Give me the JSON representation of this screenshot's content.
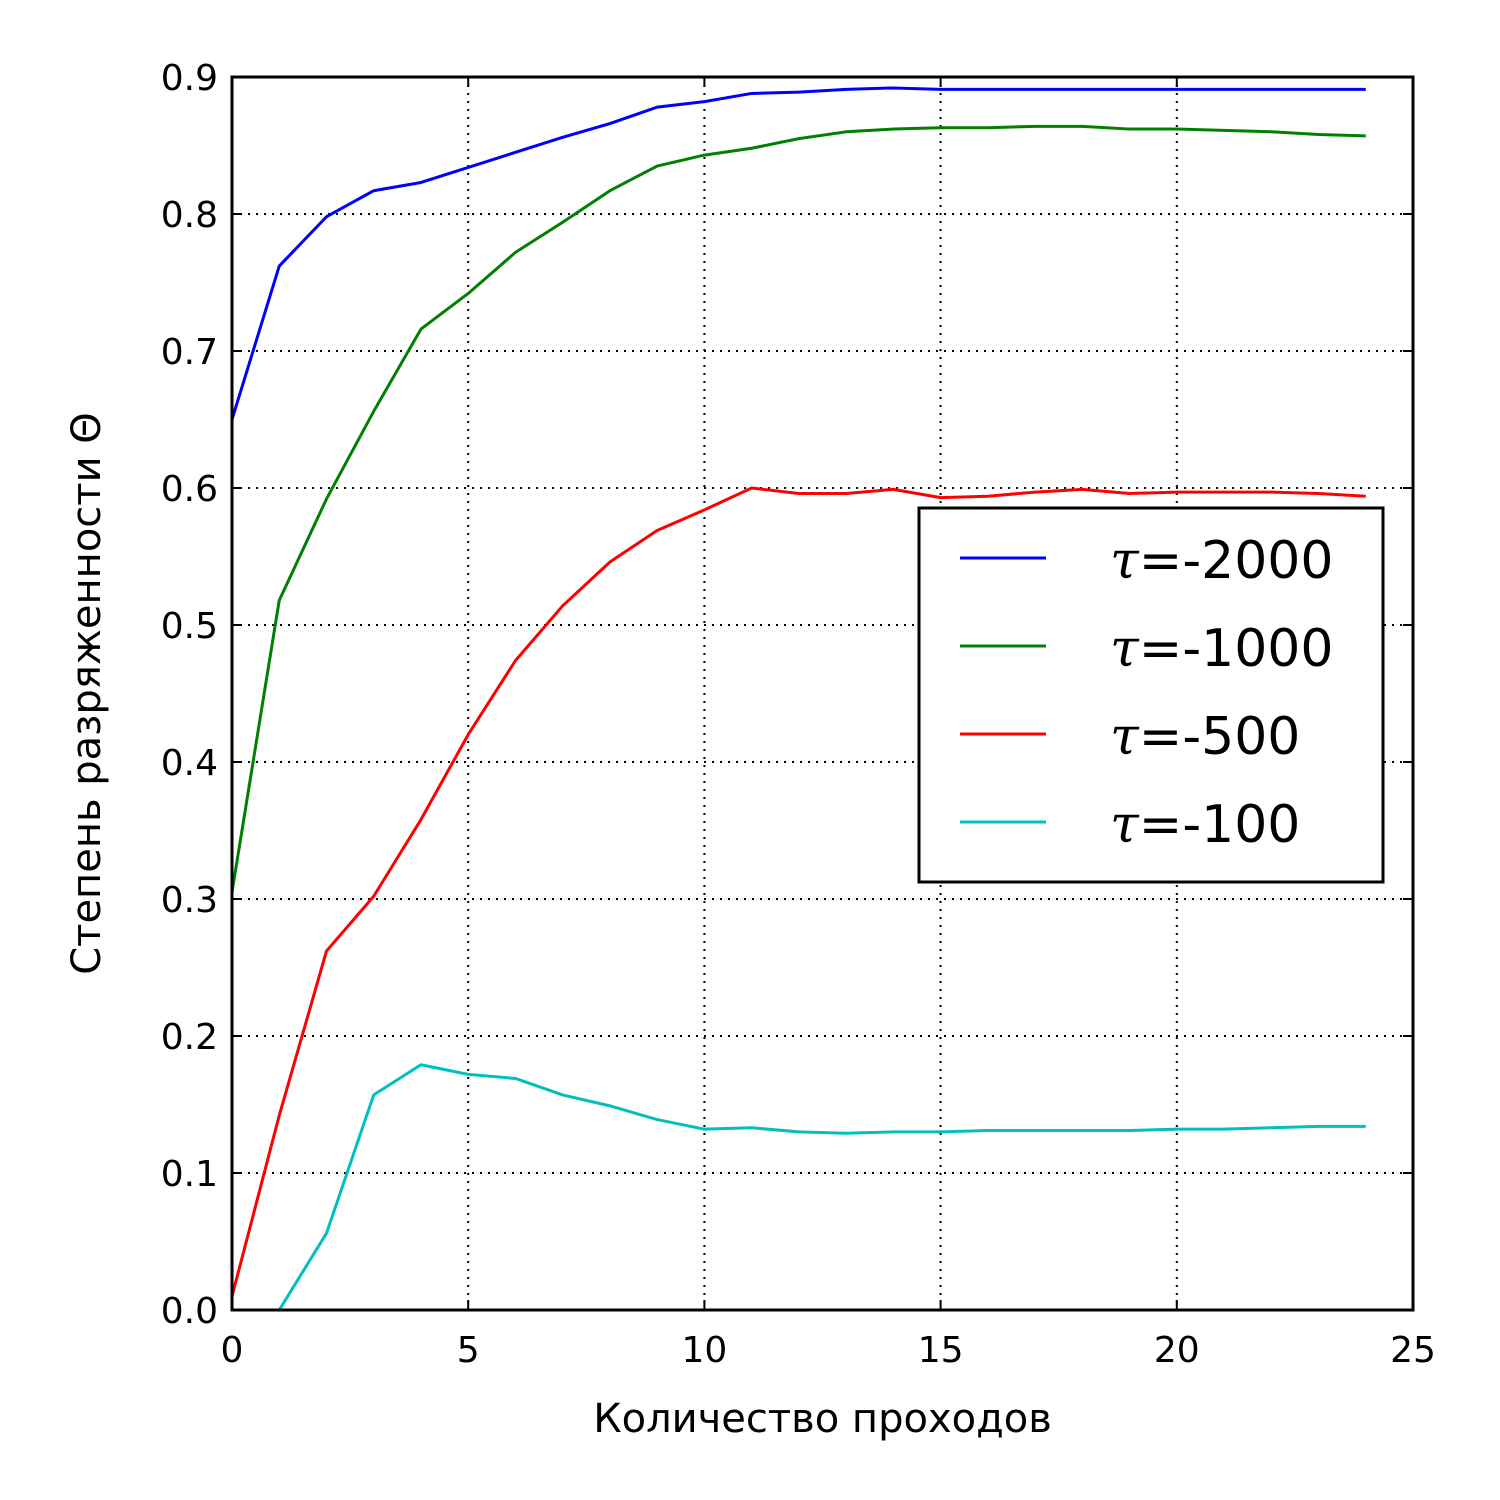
{
  "chart_data": {
    "type": "line",
    "xlabel": "Количество проходов",
    "ylabel": "Степень разряженности Θ",
    "xlim": [
      0,
      25
    ],
    "ylim": [
      0,
      0.9
    ],
    "x_ticks": [
      0,
      5,
      10,
      15,
      20,
      25
    ],
    "x_tick_labels": [
      "0",
      "5",
      "10",
      "15",
      "20",
      "25"
    ],
    "y_ticks": [
      0,
      0.1,
      0.2,
      0.3,
      0.4,
      0.5,
      0.6,
      0.7,
      0.8,
      0.9
    ],
    "y_tick_labels": [
      "0.0",
      "0.1",
      "0.2",
      "0.3",
      "0.4",
      "0.5",
      "0.6",
      "0.7",
      "0.8",
      "0.9"
    ],
    "grid": true,
    "legend_position": "center-right",
    "x": [
      0,
      1,
      2,
      3,
      4,
      5,
      6,
      7,
      8,
      9,
      10,
      11,
      12,
      13,
      14,
      15,
      16,
      17,
      18,
      19,
      20,
      21,
      22,
      23,
      24
    ],
    "series": [
      {
        "name": "τ=-2000",
        "tau_symbol": "τ",
        "label_rest": "=-2000",
        "color": "#0000ff",
        "values": [
          0.65,
          0.762,
          0.798,
          0.817,
          0.823,
          0.834,
          0.845,
          0.856,
          0.866,
          0.878,
          0.882,
          0.888,
          0.889,
          0.891,
          0.892,
          0.891,
          0.891,
          0.891,
          0.891,
          0.891,
          0.891,
          0.891,
          0.891,
          0.891,
          0.891
        ]
      },
      {
        "name": "τ=-1000",
        "tau_symbol": "τ",
        "label_rest": "=-1000",
        "color": "#008000",
        "values": [
          0.305,
          0.518,
          0.592,
          0.656,
          0.716,
          0.742,
          0.772,
          0.794,
          0.817,
          0.835,
          0.843,
          0.848,
          0.855,
          0.86,
          0.862,
          0.863,
          0.863,
          0.864,
          0.864,
          0.862,
          0.862,
          0.861,
          0.86,
          0.858,
          0.857
        ]
      },
      {
        "name": "τ=-500",
        "tau_symbol": "τ",
        "label_rest": "=-500",
        "color": "#ff0000",
        "values": [
          0.01,
          0.142,
          0.262,
          0.302,
          0.358,
          0.42,
          0.474,
          0.514,
          0.546,
          0.569,
          0.584,
          0.6,
          0.596,
          0.596,
          0.599,
          0.593,
          0.594,
          0.597,
          0.599,
          0.596,
          0.597,
          0.597,
          0.597,
          0.596,
          0.594
        ]
      },
      {
        "name": "τ=-100",
        "tau_symbol": "τ",
        "label_rest": "=-100",
        "color": "#00bfbf",
        "x_start": 1,
        "values": [
          null,
          0.0,
          0.056,
          0.157,
          0.179,
          0.172,
          0.169,
          0.157,
          0.149,
          0.139,
          0.132,
          0.133,
          0.13,
          0.129,
          0.13,
          0.13,
          0.131,
          0.131,
          0.131,
          0.131,
          0.132,
          0.132,
          0.133,
          0.134,
          0.134
        ]
      }
    ]
  }
}
